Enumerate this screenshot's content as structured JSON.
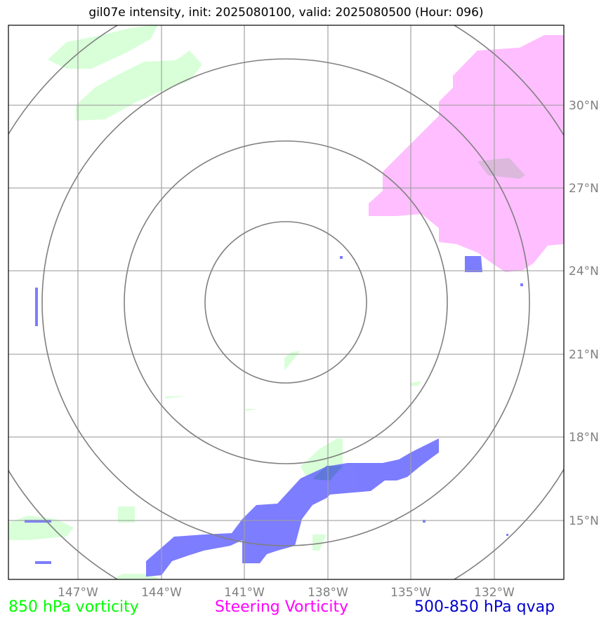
{
  "title": "gil07e intensity, init: 2025080100, valid: 2025080500 (Hour: 096)",
  "axes": {
    "lon_ticks": [
      "147°W",
      "144°W",
      "141°W",
      "138°W",
      "135°W",
      "132°W"
    ],
    "lat_ticks": [
      "30°N",
      "27°N",
      "24°N",
      "21°N",
      "18°N",
      "15°N"
    ]
  },
  "legend": [
    {
      "label": "850 hPa vorticity",
      "color": "#00ff00"
    },
    {
      "label": "Steering Vorticity",
      "color": "#ff00ff"
    },
    {
      "label": "500-850 hPa qvap",
      "color": "#0000cc"
    }
  ],
  "fields": {
    "vorticity_850_color": "#ccffcc",
    "steering_vorticity_color": "#ffb3ff",
    "qvap_color": "#6666ff"
  },
  "range_rings": 4
}
